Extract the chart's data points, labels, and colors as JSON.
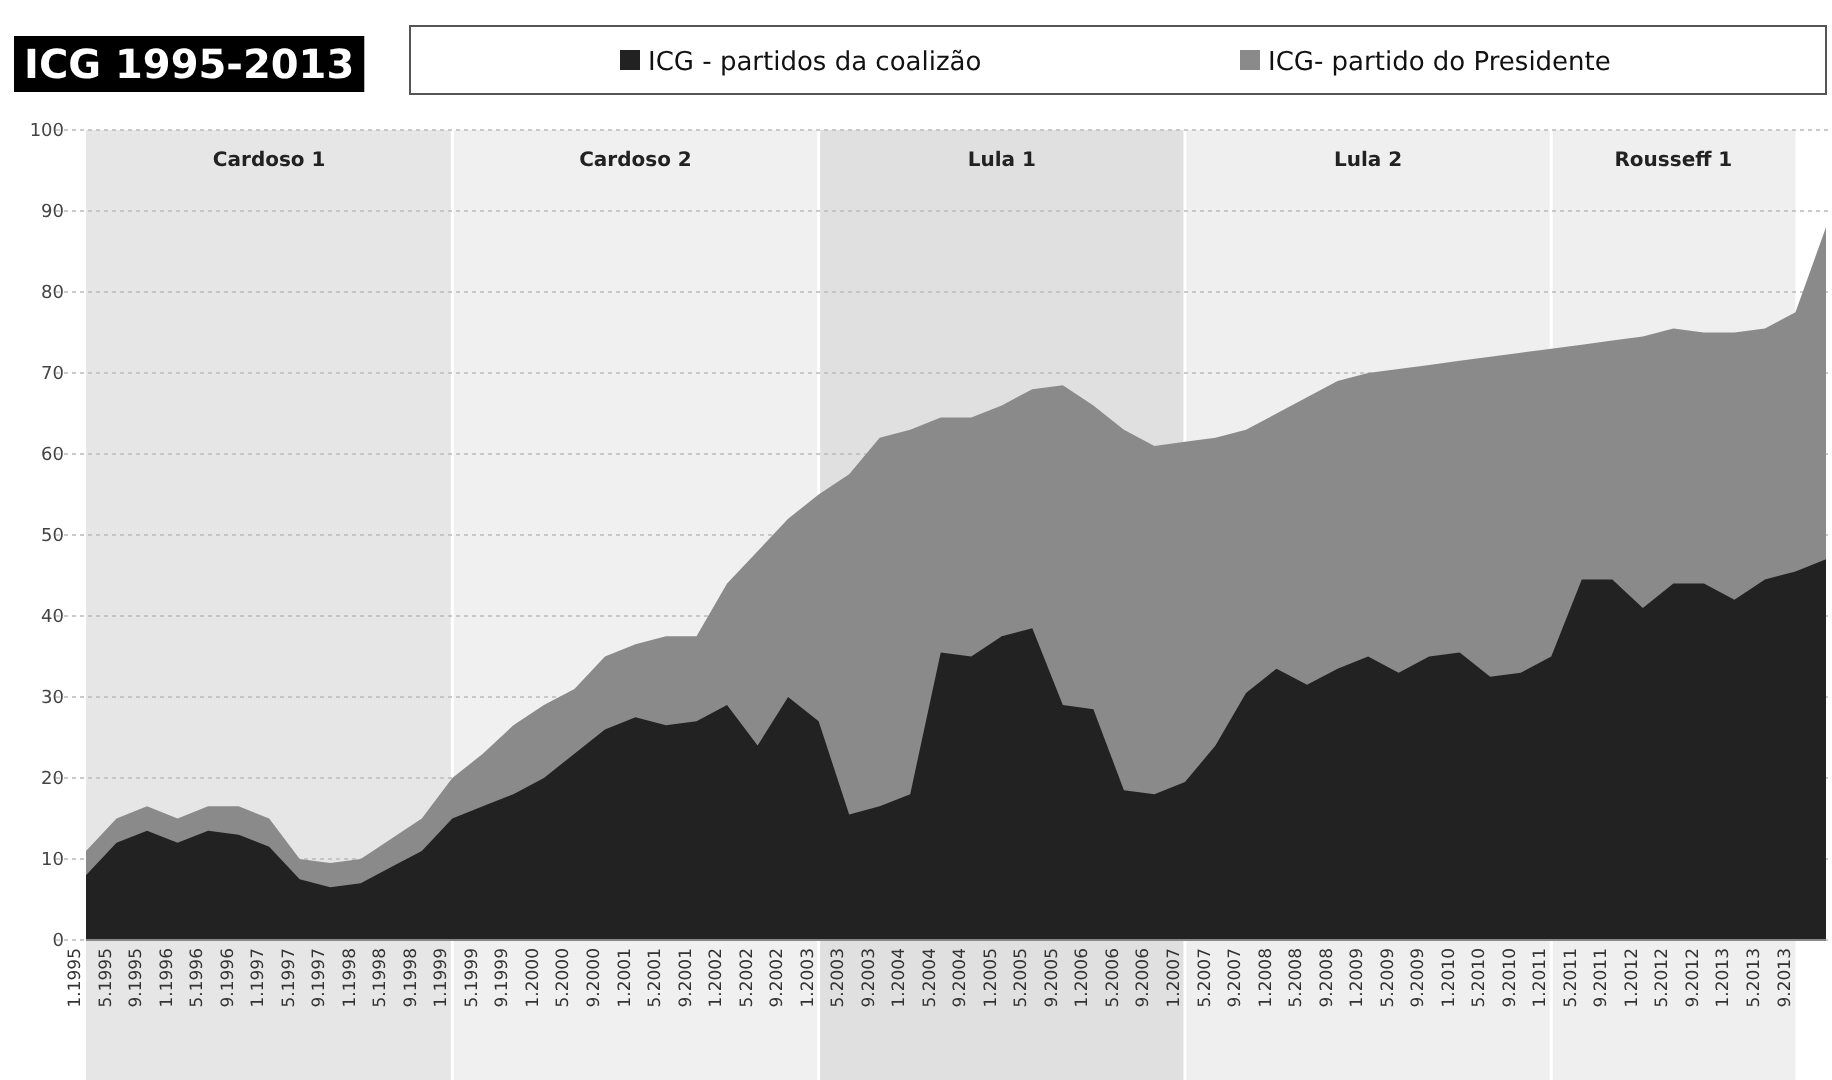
{
  "chart_data": {
    "type": "area",
    "title": "ICG 1995-2013",
    "categories": [
      "1.1995",
      "5.1995",
      "9.1995",
      "1.1996",
      "5.1996",
      "9.1996",
      "1.1997",
      "5.1997",
      "9.1997",
      "1.1998",
      "5.1998",
      "9.1998",
      "1.1999",
      "5.1999",
      "9.1999",
      "1.2000",
      "5.2000",
      "9.2000",
      "1.2001",
      "5.2001",
      "9.2001",
      "1.2002",
      "5.2002",
      "9.2002",
      "1.2003",
      "5.2003",
      "9.2003",
      "1.2004",
      "5.2004",
      "9.2004",
      "1.2005",
      "5.2005",
      "9.2005",
      "1.2006",
      "5.2006",
      "9.2006",
      "1.2007",
      "5.2007",
      "9.2007",
      "1.2008",
      "5.2008",
      "9.2008",
      "1.2009",
      "5.2009",
      "9.2009",
      "1.2010",
      "5.2010",
      "9.2010",
      "1.2011",
      "5.2011",
      "9.2011",
      "1.2012",
      "5.2012",
      "9.2012",
      "1.2013",
      "5.2013",
      "9.2013",
      null
    ],
    "series": [
      {
        "name": "ICG - partidos da coalizão",
        "color": "#222222",
        "values": [
          8,
          12,
          13.5,
          12,
          13.5,
          13,
          11.5,
          7.5,
          6.5,
          7,
          9,
          11,
          15,
          16.5,
          18,
          20,
          23,
          26,
          27.5,
          26.5,
          27,
          29,
          24,
          30,
          27,
          15.5,
          16.5,
          18,
          35.5,
          35,
          37.5,
          38.5,
          29,
          28.5,
          18.5,
          18,
          19.5,
          24,
          30.5,
          33.5,
          31.5,
          33.5,
          35,
          33,
          35,
          35.5,
          32.5,
          33,
          35,
          44.5,
          44.5,
          41,
          44,
          44,
          42,
          44.5,
          45.5,
          47
        ]
      },
      {
        "name": "ICG- partido do Presidente",
        "color": "#8a8a8a",
        "values": [
          11,
          15,
          16.5,
          15,
          16.5,
          16.5,
          15,
          10,
          9.5,
          10,
          12.5,
          15,
          20,
          23,
          26.5,
          29,
          31,
          35,
          36.5,
          37.5,
          37.5,
          44,
          48,
          52,
          55,
          57.5,
          62,
          63,
          64.5,
          64.5,
          66,
          68,
          68.5,
          66,
          63,
          61,
          61.5,
          62,
          63,
          65,
          67,
          69,
          70,
          70.5,
          71,
          71.5,
          72,
          72.5,
          73,
          73.5,
          74,
          74.5,
          75.5,
          75,
          75,
          75.5,
          77.5,
          88
        ]
      }
    ],
    "ylim": [
      0,
      100
    ],
    "yticks": [
      0,
      10,
      20,
      30,
      40,
      50,
      60,
      70,
      80,
      90,
      100
    ],
    "grid": "y",
    "legend": "top",
    "bands": [
      {
        "axis": "x",
        "from": "1.1995",
        "to": "1.1999",
        "label": "Cardoso 1",
        "color": "#e6e6e6"
      },
      {
        "axis": "x",
        "from": "1.1999",
        "to": "1.2003",
        "label": "Cardoso 2",
        "color": "#f0f0f0"
      },
      {
        "axis": "x",
        "from": "1.2003",
        "to": "1.2007",
        "label": "Lula 1",
        "color": "#e0e0e0"
      },
      {
        "axis": "x",
        "from": "1.2007",
        "to": "1.2011",
        "label": "Lula 2",
        "color": "#efefef"
      },
      {
        "axis": "x",
        "from": "1.2011",
        "to": "9.2013",
        "label": "Rousseff 1",
        "color": "#efefef"
      }
    ]
  }
}
